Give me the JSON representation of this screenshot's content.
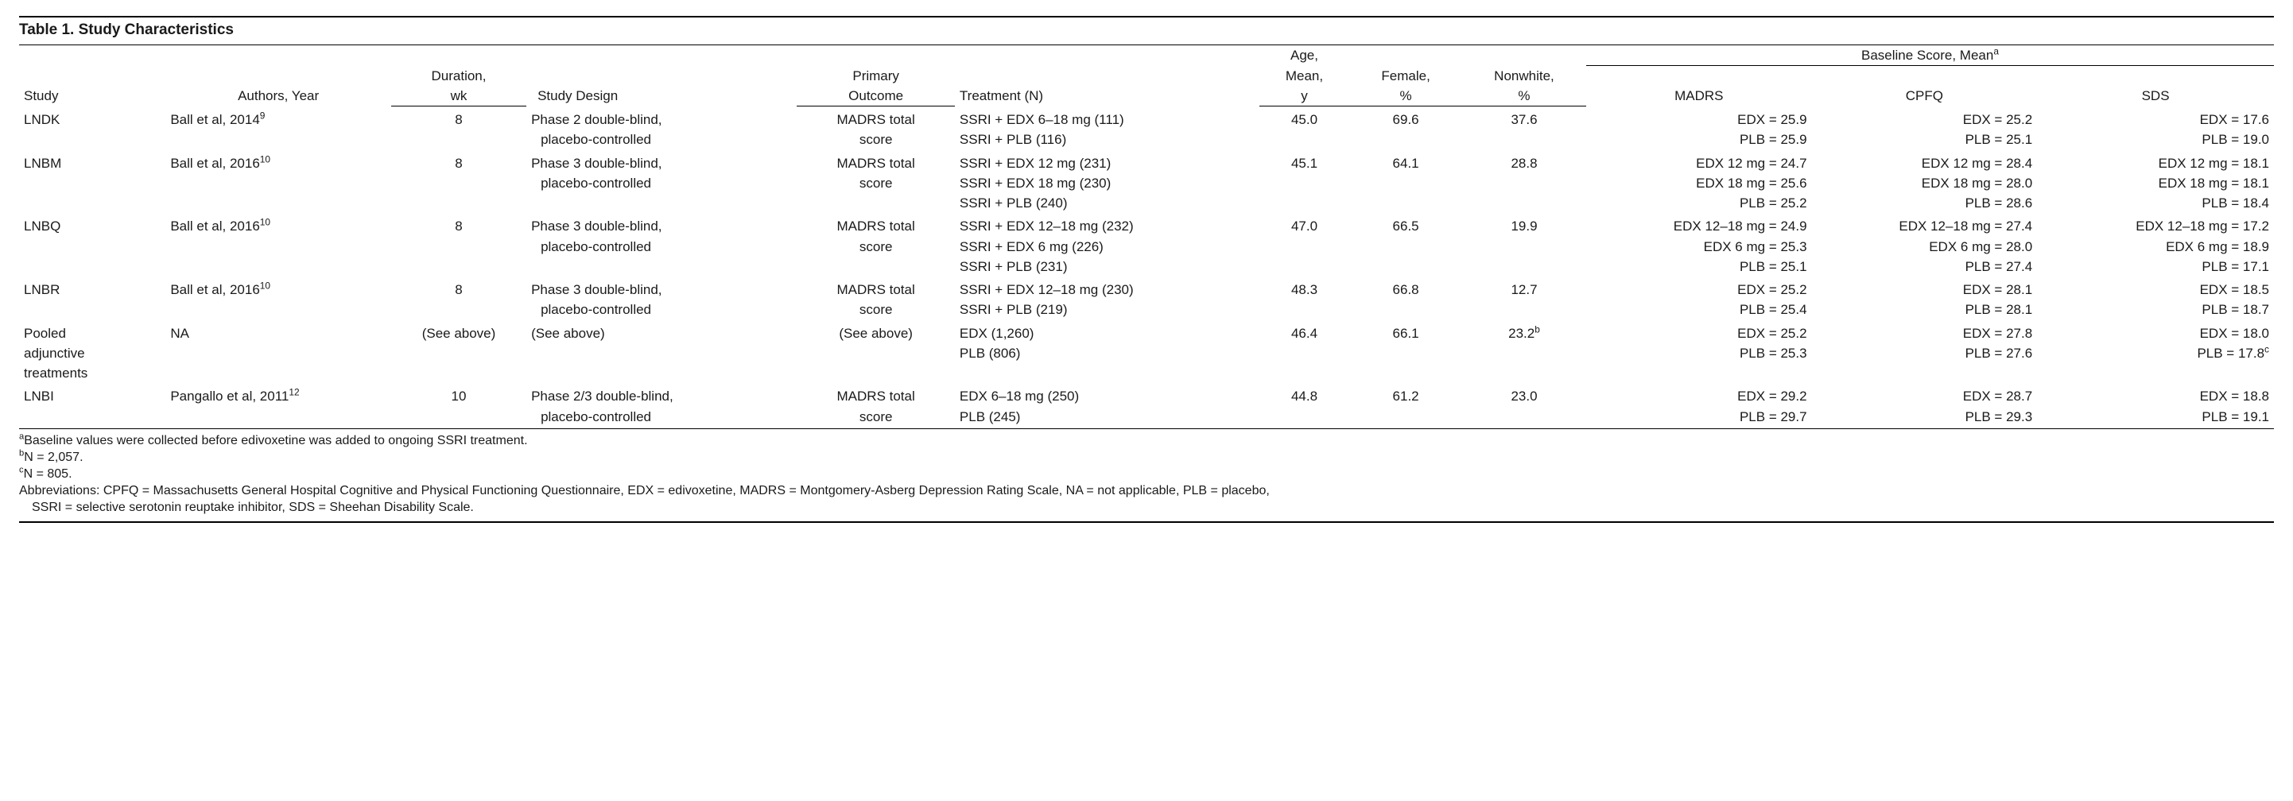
{
  "title": "Table 1. Study Characteristics",
  "columns": {
    "study": "Study",
    "authors": "Authors, Year",
    "duration_top": "Duration,",
    "duration_bot": "wk",
    "design": "Study Design",
    "outcome_top": "Primary",
    "outcome_bot": "Outcome",
    "treatment": "Treatment (N)",
    "age_l1": "Age,",
    "age_l2": "Mean,",
    "age_l3": "y",
    "female_top": "Female,",
    "female_bot": "%",
    "nonwhite_top": "Nonwhite,",
    "nonwhite_bot": "%",
    "baseline_span": "Baseline Score, Mean",
    "baseline_sup": "a",
    "madrs": "MADRS",
    "cpfq": "CPFQ",
    "sds": "SDS"
  },
  "rows": [
    {
      "study": "LNDK",
      "authors": "Ball et al, 2014",
      "authors_sup": "9",
      "duration": "8",
      "design": [
        "Phase 2 double-blind,",
        "placebo-controlled"
      ],
      "outcome": [
        "MADRS total",
        "score"
      ],
      "treatment": [
        "SSRI + EDX 6–18 mg (111)",
        "SSRI + PLB (116)"
      ],
      "age": "45.0",
      "female": "69.6",
      "nonwhite": "37.6",
      "madrs": [
        "EDX = 25.9",
        "PLB = 25.9"
      ],
      "cpfq": [
        "EDX = 25.2",
        "PLB = 25.1"
      ],
      "sds": [
        "EDX = 17.6",
        "PLB = 19.0"
      ]
    },
    {
      "study": "LNBM",
      "authors": "Ball et al, 2016",
      "authors_sup": "10",
      "duration": "8",
      "design": [
        "Phase 3 double-blind,",
        "placebo-controlled"
      ],
      "outcome": [
        "MADRS total",
        "score"
      ],
      "treatment": [
        "SSRI + EDX 12 mg (231)",
        "SSRI + EDX 18 mg (230)",
        "SSRI + PLB (240)"
      ],
      "age": "45.1",
      "female": "64.1",
      "nonwhite": "28.8",
      "madrs": [
        "EDX 12 mg = 24.7",
        "EDX 18 mg = 25.6",
        "PLB = 25.2"
      ],
      "cpfq": [
        "EDX 12 mg = 28.4",
        "EDX 18 mg = 28.0",
        "PLB = 28.6"
      ],
      "sds": [
        "EDX 12 mg = 18.1",
        "EDX 18 mg = 18.1",
        "PLB = 18.4"
      ]
    },
    {
      "study": "LNBQ",
      "authors": "Ball et al, 2016",
      "authors_sup": "10",
      "duration": "8",
      "design": [
        "Phase 3 double-blind,",
        "placebo-controlled"
      ],
      "outcome": [
        "MADRS total",
        "score"
      ],
      "treatment": [
        "SSRI + EDX 12–18 mg (232)",
        "SSRI + EDX 6 mg (226)",
        "SSRI + PLB (231)"
      ],
      "age": "47.0",
      "female": "66.5",
      "nonwhite": "19.9",
      "madrs": [
        "EDX 12–18 mg = 24.9",
        "EDX 6 mg = 25.3",
        "PLB = 25.1"
      ],
      "cpfq": [
        "EDX 12–18 mg = 27.4",
        "EDX 6 mg = 28.0",
        "PLB = 27.4"
      ],
      "sds": [
        "EDX 12–18 mg = 17.2",
        "EDX 6 mg = 18.9",
        "PLB = 17.1"
      ]
    },
    {
      "study": "LNBR",
      "authors": "Ball et al, 2016",
      "authors_sup": "10",
      "duration": "8",
      "design": [
        "Phase 3 double-blind,",
        "placebo-controlled"
      ],
      "outcome": [
        "MADRS total",
        "score"
      ],
      "treatment": [
        "SSRI + EDX 12–18 mg (230)",
        "SSRI + PLB (219)"
      ],
      "age": "48.3",
      "female": "66.8",
      "nonwhite": "12.7",
      "madrs": [
        "EDX = 25.2",
        "PLB = 25.4"
      ],
      "cpfq": [
        "EDX = 28.1",
        "PLB = 28.1"
      ],
      "sds": [
        "EDX = 18.5",
        "PLB = 18.7"
      ]
    },
    {
      "study": "Pooled adjunctive treatments",
      "study_lines": [
        "Pooled",
        "adjunctive",
        "treatments"
      ],
      "authors": "NA",
      "authors_sup": "",
      "duration": "(See above)",
      "design": [
        "(See above)"
      ],
      "outcome": [
        "(See above)"
      ],
      "treatment": [
        "EDX (1,260)",
        "PLB (806)"
      ],
      "age": "46.4",
      "female": "66.1",
      "nonwhite": "23.2",
      "nonwhite_sup": "b",
      "madrs": [
        "EDX = 25.2",
        "PLB = 25.3"
      ],
      "cpfq": [
        "EDX = 27.8",
        "PLB = 27.6"
      ],
      "sds": [
        "EDX = 18.0",
        "PLB = 17.8"
      ],
      "sds_sup": "c"
    },
    {
      "study": "LNBI",
      "authors": "Pangallo et al, 2011",
      "authors_sup": "12",
      "duration": "10",
      "design": [
        "Phase 2/3 double-blind,",
        "placebo-controlled"
      ],
      "outcome": [
        "MADRS total",
        "score"
      ],
      "treatment": [
        "EDX 6–18 mg (250)",
        "PLB (245)"
      ],
      "age": "44.8",
      "female": "61.2",
      "nonwhite": "23.0",
      "madrs": [
        "EDX = 29.2",
        "PLB = 29.7"
      ],
      "cpfq": [
        "EDX = 28.7",
        "PLB = 29.3"
      ],
      "sds": [
        "EDX = 18.8",
        "PLB = 19.1"
      ]
    }
  ],
  "footnotes": {
    "a": "Baseline values were collected before edivoxetine was added to ongoing SSRI treatment.",
    "b": "N = 2,057.",
    "c": "N = 805.",
    "abbrev1": "Abbreviations: CPFQ = Massachusetts General Hospital Cognitive and Physical Functioning Questionnaire, EDX = edivoxetine, MADRS = Montgomery-Asberg Depression Rating Scale, NA = not applicable, PLB = placebo,",
    "abbrev2": "SSRI = selective serotonin reuptake inhibitor, SDS = Sheehan Disability Scale."
  }
}
